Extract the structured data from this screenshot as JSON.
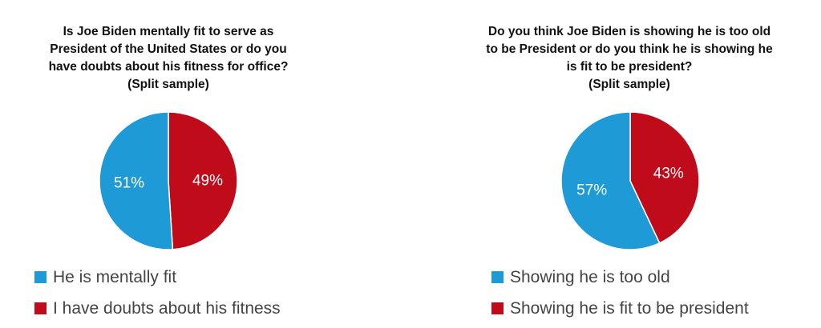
{
  "chart_data": [
    {
      "type": "pie",
      "title_lines": [
        "Is Joe Biden mentally fit to serve as",
        "President of the United States or do you",
        "have doubts about his fitness for office?",
        "(Split sample)"
      ],
      "categories": [
        "He is mentally fit",
        "I have doubts about his fitness"
      ],
      "values": [
        51,
        49
      ],
      "labels": [
        "51%",
        "49%"
      ],
      "colors": [
        "#1E9BD7",
        "#C00C1A"
      ],
      "legend": "bottom-left"
    },
    {
      "type": "pie",
      "title_lines": [
        "Do you think Joe Biden is showing he is too old",
        "to be President or do you think he is showing he",
        "is fit to be president?",
        "(Split sample)"
      ],
      "categories": [
        "Showing he is too old",
        "Showing he is fit to be president"
      ],
      "values": [
        57,
        43
      ],
      "labels": [
        "57%",
        "43%"
      ],
      "colors": [
        "#1E9BD7",
        "#C00C1A"
      ],
      "legend": "bottom-left"
    }
  ]
}
